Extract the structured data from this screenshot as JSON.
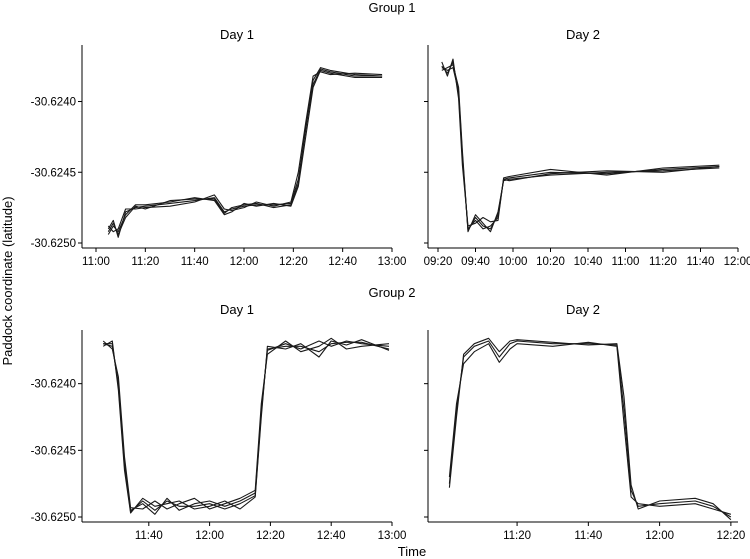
{
  "figure": {
    "xlabel": "Time",
    "ylabel": "Paddock coordinate (latitude)"
  },
  "chart_data": [
    {
      "type": "line",
      "group": "Group 1",
      "title": "Day 1",
      "xlabel": "Time",
      "ylabel": "Paddock coordinate (latitude)",
      "xlim": [
        "11:00",
        "13:00"
      ],
      "xticks": [
        "11:00",
        "11:20",
        "11:40",
        "12:00",
        "12:20",
        "12:40",
        "13:00"
      ],
      "ylim": [
        -30.625,
        -30.62365
      ],
      "yticks": [
        "-30.6240",
        "-30.6245",
        "-30.6250"
      ],
      "series": [
        {
          "x": [
            "11:05",
            "11:07",
            "11:09",
            "11:12",
            "11:16",
            "11:20",
            "11:30",
            "11:40",
            "11:48",
            "11:52",
            "11:55",
            "12:00",
            "12:05",
            "12:12",
            "12:19",
            "12:22",
            "12:25",
            "12:28",
            "12:31",
            "12:35",
            "12:45",
            "12:56"
          ],
          "y": [
            -30.6249,
            -30.62484,
            -30.62496,
            -30.62478,
            -30.62475,
            -30.62474,
            -30.62472,
            -30.6247,
            -30.62468,
            -30.62478,
            -30.62476,
            -30.62474,
            -30.62473,
            -30.62473,
            -30.62472,
            -30.62455,
            -30.6242,
            -30.62385,
            -30.62376,
            -30.62378,
            -30.62381,
            -30.62382
          ]
        },
        {
          "x": [
            "11:05",
            "11:07",
            "11:09",
            "11:12",
            "11:16",
            "11:20",
            "11:30",
            "11:40",
            "11:48",
            "11:52",
            "11:55",
            "12:00",
            "12:05",
            "12:12",
            "12:19",
            "12:22",
            "12:25",
            "12:28",
            "12:31",
            "12:35",
            "12:45",
            "12:56"
          ],
          "y": [
            -30.62494,
            -30.62488,
            -30.62492,
            -30.6248,
            -30.62473,
            -30.62473,
            -30.62471,
            -30.62468,
            -30.6247,
            -30.6248,
            -30.62478,
            -30.62472,
            -30.62474,
            -30.62472,
            -30.62474,
            -30.6246,
            -30.62425,
            -30.6239,
            -30.62378,
            -30.6238,
            -30.62383,
            -30.62383
          ]
        },
        {
          "x": [
            "11:05",
            "11:07",
            "11:09",
            "11:12",
            "11:16",
            "11:20",
            "11:30",
            "11:40",
            "11:48",
            "11:52",
            "11:55",
            "12:00",
            "12:05",
            "12:12",
            "12:19",
            "12:22",
            "12:25",
            "12:28",
            "12:31",
            "12:35",
            "12:45",
            "12:56"
          ],
          "y": [
            -30.62488,
            -30.62492,
            -30.6249,
            -30.62476,
            -30.62476,
            -30.62475,
            -30.62474,
            -30.62471,
            -30.62466,
            -30.62476,
            -30.62477,
            -30.62475,
            -30.62471,
            -30.62474,
            -30.62471,
            -30.6245,
            -30.62415,
            -30.62382,
            -30.62379,
            -30.62381,
            -30.6238,
            -30.62381
          ]
        },
        {
          "x": [
            "11:05",
            "11:07",
            "11:09",
            "11:12",
            "11:16",
            "11:20",
            "11:30",
            "11:40",
            "11:48",
            "11:52",
            "11:55",
            "12:00",
            "12:05",
            "12:12",
            "12:19",
            "12:22",
            "12:25",
            "12:28",
            "12:31",
            "12:35",
            "12:45",
            "12:56"
          ],
          "y": [
            -30.62492,
            -30.62486,
            -30.62494,
            -30.62482,
            -30.62474,
            -30.62476,
            -30.6247,
            -30.62469,
            -30.62469,
            -30.62479,
            -30.62475,
            -30.62473,
            -30.62472,
            -30.62475,
            -30.62473,
            -30.62458,
            -30.62418,
            -30.62388,
            -30.62377,
            -30.62379,
            -30.62382,
            -30.62382
          ]
        }
      ]
    },
    {
      "type": "line",
      "group": "Group 1",
      "title": "Day 2",
      "xlabel": "Time",
      "ylabel": "Paddock coordinate (latitude)",
      "xlim": [
        "09:20",
        "12:00"
      ],
      "xticks": [
        "09:20",
        "09:40",
        "10:00",
        "10:20",
        "10:40",
        "11:00",
        "11:20",
        "11:40",
        "12:00"
      ],
      "ylim": [
        -30.625,
        -30.62365
      ],
      "yticks": [
        "-30.6240",
        "-30.6245",
        "-30.6250"
      ],
      "series": [
        {
          "x": [
            "09:22",
            "09:25",
            "09:28",
            "09:31",
            "09:33",
            "09:36",
            "09:40",
            "09:44",
            "09:48",
            "09:52",
            "09:55",
            "09:58",
            "10:20",
            "10:50",
            "11:20",
            "11:50"
          ],
          "y": [
            -30.62375,
            -30.6238,
            -30.62372,
            -30.62395,
            -30.6244,
            -30.6249,
            -30.62484,
            -30.6249,
            -30.62488,
            -30.62482,
            -30.62455,
            -30.62454,
            -30.6245,
            -30.62451,
            -30.62448,
            -30.62446
          ]
        },
        {
          "x": [
            "09:22",
            "09:25",
            "09:28",
            "09:31",
            "09:33",
            "09:36",
            "09:40",
            "09:44",
            "09:48",
            "09:52",
            "09:55",
            "09:58",
            "10:20",
            "10:50",
            "11:20",
            "11:50"
          ],
          "y": [
            -30.62378,
            -30.62376,
            -30.62374,
            -30.6239,
            -30.62435,
            -30.62492,
            -30.6248,
            -30.62486,
            -30.62492,
            -30.62478,
            -30.62456,
            -30.62455,
            -30.62452,
            -30.6245,
            -30.62449,
            -30.62447
          ]
        },
        {
          "x": [
            "09:22",
            "09:25",
            "09:28",
            "09:31",
            "09:33",
            "09:36",
            "09:40",
            "09:44",
            "09:48",
            "09:52",
            "09:55",
            "09:58",
            "10:20",
            "10:50",
            "11:20",
            "11:50"
          ],
          "y": [
            -30.62372,
            -30.62382,
            -30.6237,
            -30.62398,
            -30.62445,
            -30.62488,
            -30.62486,
            -30.62482,
            -30.62485,
            -30.62484,
            -30.62454,
            -30.62453,
            -30.62448,
            -30.62452,
            -30.62447,
            -30.62445
          ]
        },
        {
          "x": [
            "09:22",
            "09:25",
            "09:28",
            "09:31",
            "09:33",
            "09:36",
            "09:40",
            "09:44",
            "09:48",
            "09:52",
            "09:55",
            "09:58",
            "10:20",
            "10:50",
            "11:20",
            "11:50"
          ],
          "y": [
            -30.62376,
            -30.62378,
            -30.62376,
            -30.62393,
            -30.62438,
            -30.62491,
            -30.62482,
            -30.62488,
            -30.6249,
            -30.6248,
            -30.62455,
            -30.62456,
            -30.62451,
            -30.62449,
            -30.6245,
            -30.62446
          ]
        }
      ]
    },
    {
      "type": "line",
      "group": "Group 2",
      "title": "Day 1",
      "xlabel": "Time",
      "ylabel": "Paddock coordinate (latitude)",
      "xlim": [
        "11:20",
        "13:00"
      ],
      "xticks": [
        "11:40",
        "12:00",
        "12:20",
        "12:40",
        "13:00"
      ],
      "ylim": [
        -30.625,
        -30.62365
      ],
      "yticks": [
        "-30.6240",
        "-30.6245",
        "-30.6250"
      ],
      "series": [
        {
          "x": [
            "11:25",
            "11:28",
            "11:30",
            "11:32",
            "11:34",
            "11:38",
            "11:42",
            "11:46",
            "11:50",
            "11:55",
            "12:00",
            "12:05",
            "12:10",
            "12:15",
            "12:17",
            "12:19",
            "12:25",
            "12:30",
            "12:36",
            "12:40",
            "12:45",
            "12:50",
            "12:59"
          ],
          "y": [
            -30.6237,
            -30.62372,
            -30.624,
            -30.6246,
            -30.62495,
            -30.6249,
            -30.62498,
            -30.62486,
            -30.62495,
            -30.6249,
            -30.62488,
            -30.62492,
            -30.62488,
            -30.62482,
            -30.6242,
            -30.62375,
            -30.6237,
            -30.62374,
            -30.62368,
            -30.62372,
            -30.62368,
            -30.6237,
            -30.62372
          ]
        },
        {
          "x": [
            "11:25",
            "11:28",
            "11:30",
            "11:32",
            "11:34",
            "11:38",
            "11:42",
            "11:46",
            "11:50",
            "11:55",
            "12:00",
            "12:05",
            "12:10",
            "12:15",
            "12:17",
            "12:19",
            "12:25",
            "12:30",
            "12:36",
            "12:40",
            "12:45",
            "12:50",
            "12:59"
          ],
          "y": [
            -30.62372,
            -30.62368,
            -30.62405,
            -30.62465,
            -30.62497,
            -30.62486,
            -30.62492,
            -30.6249,
            -30.62488,
            -30.62494,
            -30.62492,
            -30.62488,
            -30.62494,
            -30.62485,
            -30.62425,
            -30.62372,
            -30.62374,
            -30.6237,
            -30.6238,
            -30.62368,
            -30.62371,
            -30.62367,
            -30.62375
          ]
        },
        {
          "x": [
            "11:25",
            "11:28",
            "11:30",
            "11:32",
            "11:34",
            "11:38",
            "11:42",
            "11:46",
            "11:50",
            "11:55",
            "12:00",
            "12:05",
            "12:10",
            "12:15",
            "12:17",
            "12:19",
            "12:25",
            "12:30",
            "12:36",
            "12:40",
            "12:45",
            "12:50",
            "12:59"
          ],
          "y": [
            -30.62368,
            -30.62374,
            -30.62395,
            -30.62455,
            -30.62493,
            -30.62494,
            -30.62488,
            -30.62494,
            -30.6249,
            -30.62486,
            -30.62494,
            -30.6249,
            -30.62486,
            -30.6248,
            -30.62415,
            -30.62378,
            -30.62368,
            -30.62376,
            -30.62372,
            -30.62366,
            -30.62374,
            -30.62372,
            -30.6237
          ]
        },
        {
          "x": [
            "11:25",
            "11:28",
            "11:30",
            "11:32",
            "11:34",
            "11:38",
            "11:42",
            "11:46",
            "11:50",
            "11:55",
            "12:00",
            "12:05",
            "12:10",
            "12:15",
            "12:17",
            "12:19",
            "12:25",
            "12:30",
            "12:36",
            "12:40",
            "12:45",
            "12:50",
            "12:59"
          ],
          "y": [
            -30.6237,
            -30.6237,
            -30.62402,
            -30.62462,
            -30.62496,
            -30.62488,
            -30.62495,
            -30.62488,
            -30.62492,
            -30.62492,
            -30.6249,
            -30.62494,
            -30.6249,
            -30.62484,
            -30.62422,
            -30.62374,
            -30.62372,
            -30.62372,
            -30.62376,
            -30.6237,
            -30.62369,
            -30.62369,
            -30.62374
          ]
        }
      ]
    },
    {
      "type": "line",
      "group": "Group 2",
      "title": "Day 2",
      "xlabel": "Time",
      "ylabel": "Paddock coordinate (latitude)",
      "xlim": [
        "10:55",
        "12:22"
      ],
      "xticks": [
        "11:20",
        "11:40",
        "12:00",
        "12:20"
      ],
      "ylim": [
        -30.625,
        -30.62365
      ],
      "yticks": [
        "-30.6240",
        "-30.6245",
        "-30.6250"
      ],
      "series": [
        {
          "x": [
            "11:01",
            "11:03",
            "11:05",
            "11:08",
            "11:12",
            "11:15",
            "11:18",
            "11:20",
            "11:30",
            "11:40",
            "11:48",
            "11:50",
            "11:52",
            "11:54",
            "12:00",
            "12:10",
            "12:15",
            "12:20"
          ],
          "y": [
            -30.62475,
            -30.6242,
            -30.6238,
            -30.62372,
            -30.62368,
            -30.6238,
            -30.6237,
            -30.62368,
            -30.6237,
            -30.6237,
            -30.62371,
            -30.6242,
            -30.6248,
            -30.62492,
            -30.6249,
            -30.62488,
            -30.62492,
            -30.625
          ]
        },
        {
          "x": [
            "11:01",
            "11:03",
            "11:05",
            "11:08",
            "11:12",
            "11:15",
            "11:18",
            "11:20",
            "11:30",
            "11:40",
            "11:48",
            "11:50",
            "11:52",
            "11:54",
            "12:00",
            "12:10",
            "12:15",
            "12:20"
          ],
          "y": [
            -30.6247,
            -30.62415,
            -30.62385,
            -30.62376,
            -30.6237,
            -30.62384,
            -30.62374,
            -30.6237,
            -30.62372,
            -30.62369,
            -30.62372,
            -30.6243,
            -30.62485,
            -30.6249,
            -30.62492,
            -30.6249,
            -30.62494,
            -30.62498
          ]
        },
        {
          "x": [
            "11:01",
            "11:03",
            "11:05",
            "11:08",
            "11:12",
            "11:15",
            "11:18",
            "11:20",
            "11:30",
            "11:40",
            "11:48",
            "11:50",
            "11:52",
            "11:54",
            "12:00",
            "12:10",
            "12:15",
            "12:20"
          ],
          "y": [
            -30.62478,
            -30.62425,
            -30.62378,
            -30.6237,
            -30.62366,
            -30.62376,
            -30.62368,
            -30.62367,
            -30.62369,
            -30.62371,
            -30.6237,
            -30.6241,
            -30.62476,
            -30.62494,
            -30.62488,
            -30.62486,
            -30.6249,
            -30.62502
          ]
        }
      ]
    }
  ]
}
